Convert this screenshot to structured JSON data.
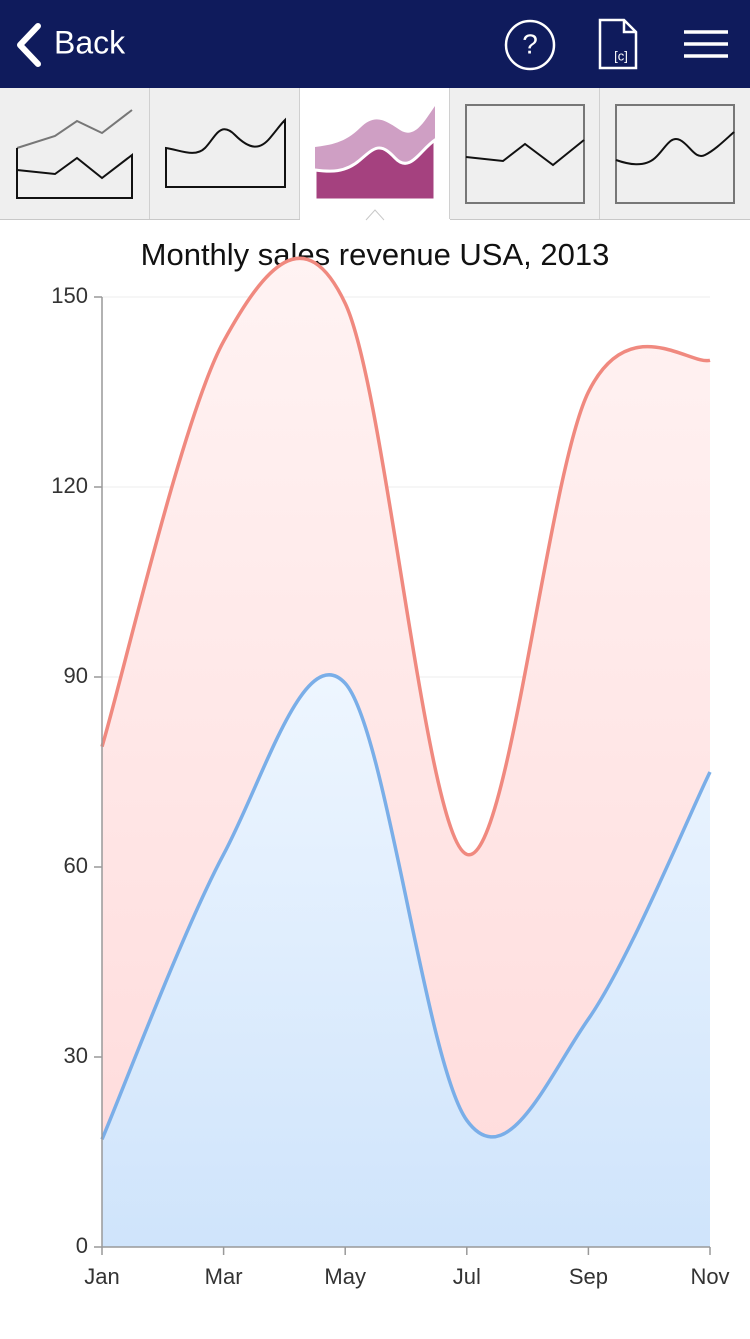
{
  "nav": {
    "back": "Back",
    "help": "?",
    "doc": "[c]"
  },
  "chart_data": {
    "type": "stacked-area",
    "title": "Monthly sales revenue USA, 2013",
    "categories": [
      "Jan",
      "Mar",
      "May",
      "Jul",
      "Sep",
      "Nov"
    ],
    "series": [
      {
        "color": "#7aaee8",
        "values": [
          17,
          62,
          89,
          20,
          36,
          75
        ]
      },
      {
        "color": "#f0897f",
        "values": [
          62,
          81,
          60,
          42,
          99,
          65
        ]
      }
    ],
    "ylim": [
      0,
      150
    ],
    "yticks": [
      0,
      30,
      60,
      90,
      120,
      150
    ],
    "grid": true,
    "smooth": true
  }
}
